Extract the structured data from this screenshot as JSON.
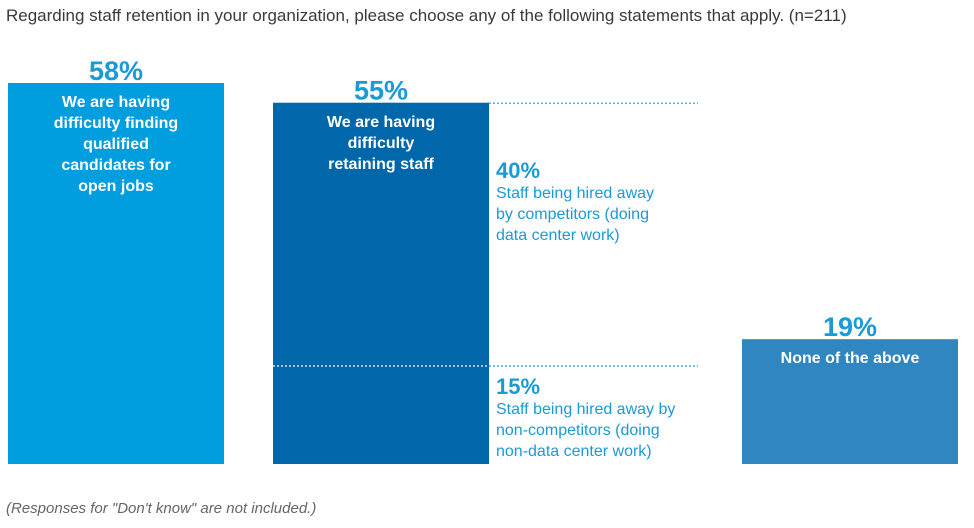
{
  "chart_data": {
    "type": "bar",
    "title": "Regarding staff retention in your organization, please choose any of the following statements that apply. (n=211)",
    "ylim": [
      0,
      60
    ],
    "unit": "%",
    "bars": [
      {
        "name": "We are having difficulty finding qualified candidates for open jobs",
        "value": 58,
        "value_label": "58%",
        "label": "We are having difficulty finding qualified candidates for open jobs",
        "color": "#009ddf"
      },
      {
        "name": "We are having difficulty retaining staff",
        "value": 55,
        "value_label": "55%",
        "label": "We are having difficulty retaining staff",
        "color": "#0068aa",
        "segments": [
          {
            "name": "Staff being hired away by competitors (doing data center work)",
            "value": 40,
            "value_label": "40%"
          },
          {
            "name": "Staff being hired away by non-competitors (doing non-data center work)",
            "value": 15,
            "value_label": "15%"
          }
        ]
      },
      {
        "name": "None of the above",
        "value": 19,
        "value_label": "19%",
        "label": "None of the above",
        "color": "#2f86c0"
      }
    ],
    "value_label_color": "#1a9ad6",
    "segment_label_color": "#1a9ad6",
    "footnote": "(Responses for \"Don't know\" are not included.)"
  }
}
